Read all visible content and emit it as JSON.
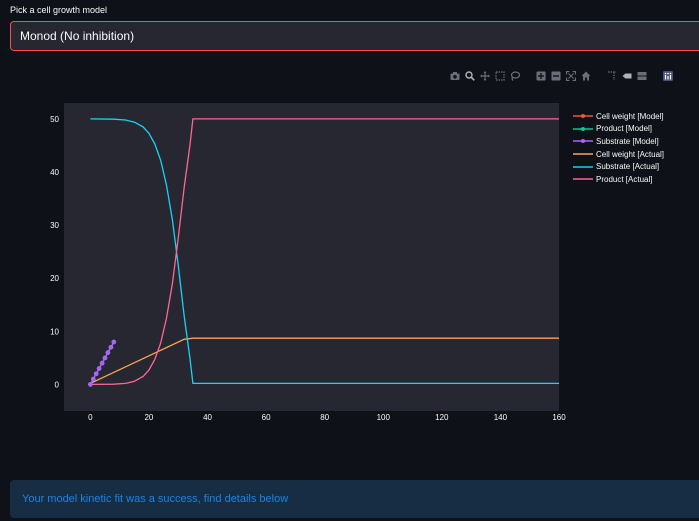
{
  "select": {
    "label": "Pick a cell growth model",
    "value": "Monod (No inhibition)"
  },
  "modebar": {
    "icons": [
      "camera-icon",
      "zoom-icon",
      "pan-icon",
      "box-select-icon",
      "lasso-select-icon",
      "zoom-in-icon",
      "zoom-out-icon",
      "autoscale-icon",
      "home-icon",
      "spike-lines-icon",
      "hover-closest-icon",
      "hover-compare-icon",
      "plotly-logo-icon"
    ]
  },
  "colors": {
    "accent": "#ff4b4b",
    "plot_bg": "#262730",
    "info_text": "#1c83e1",
    "info_bg": "#172d43"
  },
  "chart_data": {
    "type": "line",
    "xlim": [
      -9,
      160
    ],
    "ylim": [
      -5,
      53
    ],
    "x_ticks": [
      0,
      20,
      40,
      60,
      80,
      100,
      120,
      140,
      160
    ],
    "y_ticks": [
      0,
      10,
      20,
      30,
      40,
      50
    ],
    "grid": false,
    "legend_position": "right",
    "series": [
      {
        "name": "Cell weight [Model]",
        "color": "#ef553b",
        "mode": "lines+markers",
        "x": [
          0,
          1,
          2,
          3,
          4,
          5,
          6,
          7,
          8
        ],
        "y": [
          0,
          1,
          2,
          3,
          4,
          5,
          6,
          7,
          8
        ]
      },
      {
        "name": "Product [Model]",
        "color": "#00cc96",
        "mode": "lines+markers",
        "x": [
          0,
          1,
          2,
          3,
          4,
          5,
          6,
          7,
          8
        ],
        "y": [
          0,
          1,
          2,
          3,
          4,
          5,
          6,
          7,
          8
        ]
      },
      {
        "name": "Substrate [Model]",
        "color": "#ab63fa",
        "mode": "lines+markers",
        "x": [
          0,
          1,
          2,
          3,
          4,
          5,
          6,
          7,
          8
        ],
        "y": [
          0,
          1,
          2,
          3,
          4,
          5,
          6,
          7,
          8
        ]
      },
      {
        "name": "Cell weight [Actual]",
        "color": "#ffa15a",
        "mode": "lines",
        "x": [
          0,
          32,
          35,
          160
        ],
        "y": [
          0.2,
          8.5,
          8.7,
          8.7
        ]
      },
      {
        "name": "Substrate [Actual]",
        "color": "#19d3f3",
        "mode": "lines",
        "x": [
          0,
          8,
          12,
          15,
          18,
          20,
          22,
          24,
          26,
          28,
          30,
          32,
          34,
          35,
          160
        ],
        "y": [
          50,
          49.95,
          49.8,
          49.4,
          48.5,
          47.3,
          45.3,
          42.2,
          37.5,
          31,
          22.5,
          13,
          5,
          0.2,
          0.2
        ]
      },
      {
        "name": "Product [Actual]",
        "color": "#ff6692",
        "mode": "lines",
        "x": [
          0,
          8,
          12,
          15,
          18,
          20,
          22,
          24,
          26,
          28,
          30,
          32,
          34,
          35,
          160
        ],
        "y": [
          0,
          0.05,
          0.2,
          0.6,
          1.5,
          2.7,
          4.7,
          7.8,
          12.5,
          19,
          27.5,
          37,
          45,
          50,
          50
        ]
      }
    ]
  },
  "alert": {
    "text": "Your model kinetic fit was a success, find details below"
  }
}
